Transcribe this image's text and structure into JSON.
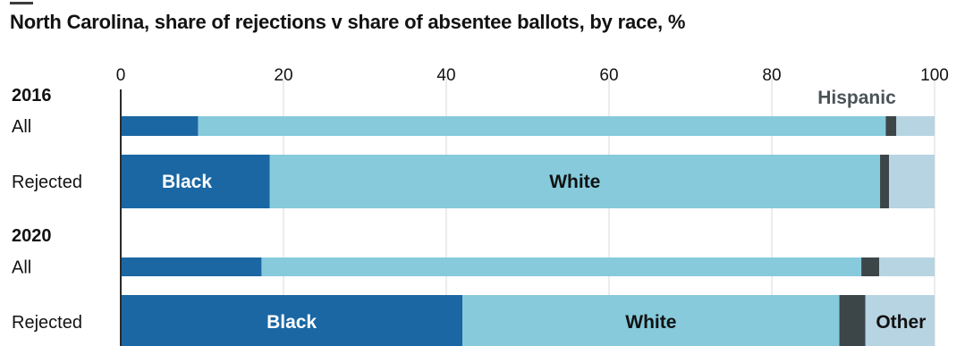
{
  "title": "North Carolina, share of rejections v share of absentee ballots, by race, %",
  "colors": {
    "black": "#1b67a3",
    "white": "#86cadc",
    "hispanic": "#3c4649",
    "other": "#b7d4e2",
    "grid": "#d8d8d8",
    "text": "#121212",
    "label_light": "#ffffff",
    "label_dark": "#121212",
    "hispanic_label": "#4a5356"
  },
  "chart_data": {
    "type": "bar",
    "orientation": "horizontal",
    "stacked": true,
    "xlim": [
      0,
      100
    ],
    "xticks": [
      "0",
      "20",
      "40",
      "60",
      "80",
      "100"
    ],
    "grid": true,
    "groups": [
      {
        "label": "2016",
        "rows": [
          {
            "label": "All",
            "values": {
              "Black": 9.5,
              "White": 84.5,
              "Hispanic": 1.3,
              "Other": 4.7
            }
          },
          {
            "label": "Rejected",
            "values": {
              "Black": 18.3,
              "White": 75.0,
              "Hispanic": 1.1,
              "Other": 5.6
            }
          }
        ]
      },
      {
        "label": "2020",
        "rows": [
          {
            "label": "All",
            "values": {
              "Black": 17.3,
              "White": 73.7,
              "Hispanic": 2.2,
              "Other": 6.8
            }
          },
          {
            "label": "Rejected",
            "values": {
              "Black": 42.0,
              "White": 46.3,
              "Hispanic": 3.2,
              "Other": 8.5
            }
          }
        ]
      }
    ],
    "series": [
      "Black",
      "White",
      "Hispanic",
      "Other"
    ],
    "annotations": [
      {
        "text": "Black",
        "row": "2016 Rejected",
        "series": "Black"
      },
      {
        "text": "White",
        "row": "2016 Rejected",
        "series": "White"
      },
      {
        "text": "Hispanic",
        "row": "2016 All",
        "series": "Hispanic"
      },
      {
        "text": "Black",
        "row": "2020 Rejected",
        "series": "Black"
      },
      {
        "text": "White",
        "row": "2020 Rejected",
        "series": "White"
      },
      {
        "text": "Other",
        "row": "2020 Rejected",
        "series": "Other"
      }
    ]
  }
}
